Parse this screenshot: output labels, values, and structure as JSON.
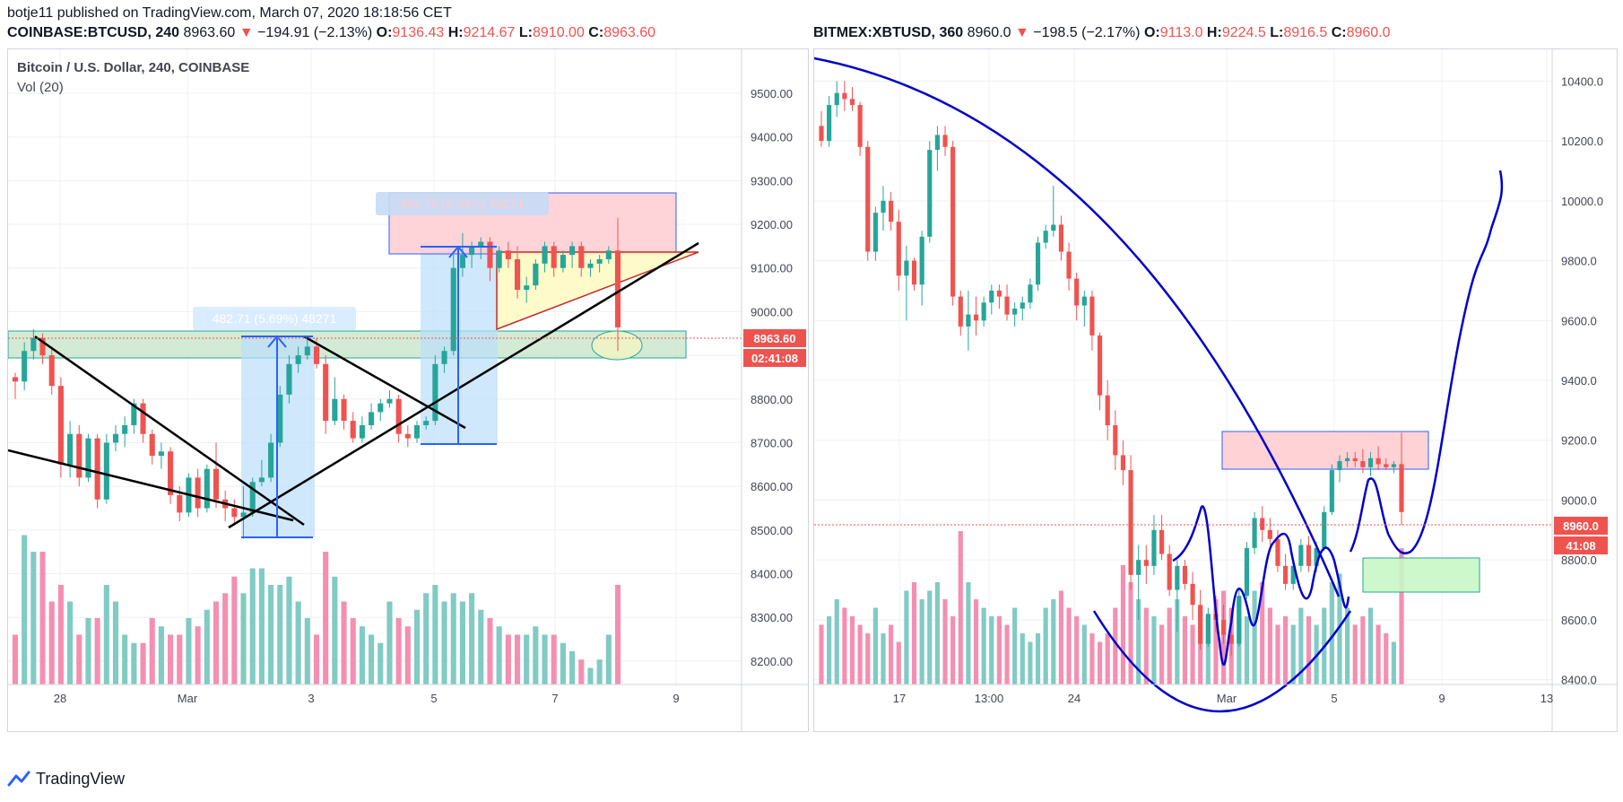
{
  "header": {
    "line1": "botje11 published on TradingView.com, March 07, 2020 18:18:56 CET",
    "left": {
      "symbol": "COINBASE:BTCUSD, 240",
      "last": "8963.60",
      "change": "−194.91 (−2.13%)",
      "o_label": "O:",
      "o": "9136.43",
      "h_label": "H:",
      "h": "9214.67",
      "l_label": "L:",
      "l": "8910.00",
      "c_label": "C:",
      "c": "8963.60"
    },
    "right": {
      "symbol": "BITMEX:XBTUSD, 360",
      "last": "8960.0",
      "change": "−198.5 (−2.17%)",
      "o_label": "O:",
      "o": "9113.0",
      "h_label": "H:",
      "h": "9224.5",
      "l_label": "L:",
      "l": "8916.5",
      "c_label": "C:",
      "c": "8960.0"
    }
  },
  "left_chart": {
    "title": "Bitcoin / U.S. Dollar, 240, COINBASE",
    "indicator": "Vol (20)",
    "price_label": "8963.60",
    "countdown": "02:41:08",
    "measure_1": "482.71 (5.69%) 48271",
    "measure_2": "482.71 (5.54%) 48271"
  },
  "right_chart": {
    "price_label": "8960.0",
    "countdown": "41:08"
  },
  "brand": "TradingView",
  "colors": {
    "up": "#26a69a",
    "down": "#ef5350",
    "vol_up": "#80cbc4",
    "vol_down": "#f48fb1",
    "drawing": "#0000cc"
  },
  "chart_data": [
    {
      "type": "candlestick",
      "symbol": "COINBASE:BTCUSD",
      "timeframe": "240",
      "yticks": [
        8200,
        8300,
        8400,
        8500,
        8600,
        8700,
        8800,
        8900,
        9000,
        9100,
        9200,
        9300,
        9400,
        9500
      ],
      "ylim": [
        8130,
        9580
      ],
      "xticks": [
        "28",
        "Mar",
        "3",
        "5",
        "7",
        "9"
      ],
      "candles": [
        [
          8850,
          8860,
          8800,
          8840
        ],
        [
          8840,
          8930,
          8820,
          8910
        ],
        [
          8910,
          8960,
          8890,
          8940
        ],
        [
          8940,
          8950,
          8880,
          8900
        ],
        [
          8900,
          8920,
          8810,
          8830
        ],
        [
          8830,
          8850,
          8620,
          8650
        ],
        [
          8650,
          8750,
          8620,
          8720
        ],
        [
          8720,
          8740,
          8600,
          8620
        ],
        [
          8620,
          8720,
          8610,
          8710
        ],
        [
          8710,
          8720,
          8550,
          8570
        ],
        [
          8570,
          8720,
          8560,
          8700
        ],
        [
          8700,
          8740,
          8680,
          8720
        ],
        [
          8720,
          8760,
          8690,
          8740
        ],
        [
          8740,
          8800,
          8720,
          8790
        ],
        [
          8790,
          8800,
          8700,
          8720
        ],
        [
          8720,
          8730,
          8650,
          8670
        ],
        [
          8670,
          8700,
          8640,
          8680
        ],
        [
          8680,
          8690,
          8560,
          8580
        ],
        [
          8580,
          8600,
          8520,
          8540
        ],
        [
          8540,
          8630,
          8530,
          8620
        ],
        [
          8620,
          8640,
          8530,
          8550
        ],
        [
          8550,
          8650,
          8540,
          8640
        ],
        [
          8640,
          8700,
          8550,
          8570
        ],
        [
          8570,
          8590,
          8520,
          8550
        ],
        [
          8550,
          8570,
          8510,
          8530
        ],
        [
          8530,
          8600,
          8480,
          8540
        ],
        [
          8540,
          8620,
          8530,
          8610
        ],
        [
          8610,
          8660,
          8600,
          8620
        ],
        [
          8620,
          8720,
          8610,
          8700
        ],
        [
          8700,
          8830,
          8690,
          8810
        ],
        [
          8810,
          8900,
          8790,
          8880
        ],
        [
          8880,
          8920,
          8860,
          8900
        ],
        [
          8900,
          8940,
          8890,
          8920
        ],
        [
          8920,
          8940,
          8870,
          8880
        ],
        [
          8880,
          8900,
          8720,
          8750
        ],
        [
          8750,
          8850,
          8740,
          8800
        ],
        [
          8800,
          8810,
          8730,
          8750
        ],
        [
          8750,
          8770,
          8700,
          8710
        ],
        [
          8710,
          8760,
          8700,
          8740
        ],
        [
          8740,
          8790,
          8730,
          8770
        ],
        [
          8770,
          8800,
          8750,
          8790
        ],
        [
          8790,
          8820,
          8780,
          8800
        ],
        [
          8800,
          8810,
          8700,
          8720
        ],
        [
          8720,
          8740,
          8690,
          8710
        ],
        [
          8710,
          8750,
          8700,
          8740
        ],
        [
          8740,
          8760,
          8730,
          8750
        ],
        [
          8750,
          8900,
          8740,
          8880
        ],
        [
          8880,
          8920,
          8860,
          8910
        ],
        [
          8910,
          9130,
          8900,
          9100
        ],
        [
          9100,
          9180,
          9080,
          9130
        ],
        [
          9130,
          9160,
          9100,
          9150
        ],
        [
          9150,
          9170,
          9120,
          9160
        ],
        [
          9160,
          9170,
          9070,
          9100
        ],
        [
          9100,
          9150,
          9090,
          9140
        ],
        [
          9140,
          9160,
          9100,
          9120
        ],
        [
          9120,
          9150,
          9030,
          9050
        ],
        [
          9050,
          9080,
          9020,
          9060
        ],
        [
          9060,
          9120,
          9050,
          9110
        ],
        [
          9110,
          9160,
          9090,
          9150
        ],
        [
          9150,
          9160,
          9080,
          9100
        ],
        [
          9100,
          9140,
          9090,
          9130
        ],
        [
          9130,
          9160,
          9100,
          9150
        ],
        [
          9150,
          9160,
          9080,
          9100
        ],
        [
          9100,
          9120,
          9080,
          9110
        ],
        [
          9110,
          9130,
          9090,
          9120
        ],
        [
          9120,
          9150,
          9110,
          9140
        ],
        [
          9140,
          9215,
          8910,
          8964
        ]
      ],
      "volume_rel": [
        0.3,
        0.9,
        0.8,
        0.8,
        0.5,
        0.6,
        0.5,
        0.3,
        0.4,
        0.4,
        0.6,
        0.5,
        0.3,
        0.25,
        0.25,
        0.4,
        0.35,
        0.3,
        0.3,
        0.4,
        0.35,
        0.45,
        0.5,
        0.55,
        0.65,
        0.55,
        0.7,
        0.7,
        0.6,
        0.6,
        0.65,
        0.5,
        0.4,
        0.3,
        0.8,
        0.65,
        0.5,
        0.4,
        0.35,
        0.3,
        0.25,
        0.5,
        0.4,
        0.35,
        0.45,
        0.55,
        0.6,
        0.5,
        0.55,
        0.5,
        0.55,
        0.45,
        0.4,
        0.35,
        0.3,
        0.3,
        0.3,
        0.35,
        0.3,
        0.3,
        0.25,
        0.2,
        0.15,
        0.1,
        0.15,
        0.3,
        0.6
      ]
    },
    {
      "type": "candlestick",
      "symbol": "BITMEX:XBTUSD",
      "timeframe": "360",
      "yticks": [
        8400,
        8600,
        8800,
        9000,
        9200,
        9400,
        9600,
        9800,
        10000,
        10200,
        10400
      ],
      "ylim": [
        8300,
        10530
      ],
      "xticks": [
        "17",
        "13:00",
        "24",
        "Mar",
        "5",
        "9",
        "13"
      ],
      "candles": [
        [
          10250,
          10300,
          10180,
          10200
        ],
        [
          10200,
          10350,
          10180,
          10320
        ],
        [
          10320,
          10400,
          10280,
          10360
        ],
        [
          10360,
          10400,
          10300,
          10340
        ],
        [
          10340,
          10380,
          10300,
          10320
        ],
        [
          10320,
          10330,
          10150,
          10180
        ],
        [
          10180,
          10200,
          9800,
          9830
        ],
        [
          9830,
          9980,
          9800,
          9960
        ],
        [
          9960,
          10050,
          9900,
          10000
        ],
        [
          10000,
          10030,
          9900,
          9930
        ],
        [
          9930,
          9970,
          9700,
          9750
        ],
        [
          9750,
          9850,
          9600,
          9800
        ],
        [
          9800,
          9810,
          9700,
          9720
        ],
        [
          9720,
          9900,
          9650,
          9880
        ],
        [
          9880,
          10200,
          9860,
          10170
        ],
        [
          10170,
          10250,
          10100,
          10220
        ],
        [
          10220,
          10250,
          10150,
          10180
        ],
        [
          10180,
          10200,
          9650,
          9680
        ],
        [
          9680,
          9700,
          9550,
          9580
        ],
        [
          9580,
          9700,
          9500,
          9620
        ],
        [
          9620,
          9680,
          9550,
          9600
        ],
        [
          9600,
          9680,
          9580,
          9660
        ],
        [
          9660,
          9720,
          9620,
          9700
        ],
        [
          9700,
          9720,
          9640,
          9680
        ],
        [
          9680,
          9720,
          9600,
          9620
        ],
        [
          9620,
          9660,
          9580,
          9640
        ],
        [
          9640,
          9680,
          9600,
          9660
        ],
        [
          9660,
          9740,
          9640,
          9720
        ],
        [
          9720,
          9880,
          9700,
          9860
        ],
        [
          9860,
          9920,
          9840,
          9900
        ],
        [
          9900,
          10050,
          9880,
          9920
        ],
        [
          9920,
          9950,
          9800,
          9830
        ],
        [
          9830,
          9860,
          9700,
          9740
        ],
        [
          9740,
          9760,
          9600,
          9650
        ],
        [
          9650,
          9700,
          9580,
          9680
        ],
        [
          9680,
          9700,
          9500,
          9550
        ],
        [
          9550,
          9560,
          9300,
          9350
        ],
        [
          9350,
          9400,
          9200,
          9250
        ],
        [
          9250,
          9300,
          9100,
          9150
        ],
        [
          9150,
          9200,
          9050,
          9100
        ],
        [
          9100,
          9150,
          8700,
          8750
        ],
        [
          8750,
          8850,
          8600,
          8800
        ],
        [
          8800,
          8850,
          8720,
          8780
        ],
        [
          8780,
          8950,
          8750,
          8900
        ],
        [
          8900,
          8950,
          8800,
          8820
        ],
        [
          8820,
          8850,
          8680,
          8700
        ],
        [
          8700,
          8800,
          8560,
          8780
        ],
        [
          8780,
          8800,
          8700,
          8720
        ],
        [
          8720,
          8760,
          8600,
          8650
        ],
        [
          8650,
          8700,
          8500,
          8520
        ],
        [
          8520,
          8640,
          8510,
          8620
        ],
        [
          8620,
          8680,
          8560,
          8600
        ],
        [
          8600,
          8650,
          8520,
          8550
        ],
        [
          8550,
          8580,
          8480,
          8520
        ],
        [
          8520,
          8700,
          8510,
          8680
        ],
        [
          8680,
          8860,
          8670,
          8840
        ],
        [
          8840,
          8960,
          8820,
          8940
        ],
        [
          8940,
          8980,
          8860,
          8900
        ],
        [
          8900,
          8940,
          8850,
          8870
        ],
        [
          8870,
          8900,
          8760,
          8780
        ],
        [
          8780,
          8820,
          8700,
          8720
        ],
        [
          8720,
          8800,
          8700,
          8780
        ],
        [
          8780,
          8870,
          8760,
          8850
        ],
        [
          8850,
          8880,
          8760,
          8780
        ],
        [
          8780,
          8860,
          8760,
          8840
        ],
        [
          8840,
          8980,
          8830,
          8960
        ],
        [
          8960,
          9120,
          8950,
          9100
        ],
        [
          9100,
          9150,
          9060,
          9130
        ],
        [
          9130,
          9160,
          9110,
          9140
        ],
        [
          9140,
          9160,
          9110,
          9130
        ],
        [
          9130,
          9170,
          9090,
          9110
        ],
        [
          9110,
          9160,
          9080,
          9140
        ],
        [
          9140,
          9180,
          9100,
          9120
        ],
        [
          9120,
          9140,
          9100,
          9110
        ],
        [
          9110,
          9130,
          9090,
          9120
        ],
        [
          9120,
          9225,
          8916,
          8960
        ]
      ],
      "volume_rel": [
        0.35,
        0.4,
        0.5,
        0.45,
        0.4,
        0.35,
        0.3,
        0.45,
        0.3,
        0.35,
        0.25,
        0.55,
        0.6,
        0.5,
        0.55,
        0.6,
        0.5,
        0.4,
        0.9,
        0.6,
        0.5,
        0.45,
        0.4,
        0.4,
        0.35,
        0.45,
        0.3,
        0.25,
        0.3,
        0.45,
        0.5,
        0.55,
        0.45,
        0.4,
        0.35,
        0.3,
        0.25,
        0.3,
        0.45,
        0.7,
        0.6,
        0.5,
        0.45,
        0.4,
        0.35,
        0.45,
        0.5,
        0.4,
        0.35,
        0.45,
        0.4,
        0.5,
        0.55,
        0.45,
        0.5,
        0.4,
        0.55,
        0.6,
        0.45,
        0.35,
        0.4,
        0.35,
        0.45,
        0.4,
        0.35,
        0.45,
        0.6,
        0.65,
        0.45,
        0.35,
        0.4,
        0.45,
        0.35,
        0.3,
        0.25,
        0.8
      ]
    }
  ]
}
